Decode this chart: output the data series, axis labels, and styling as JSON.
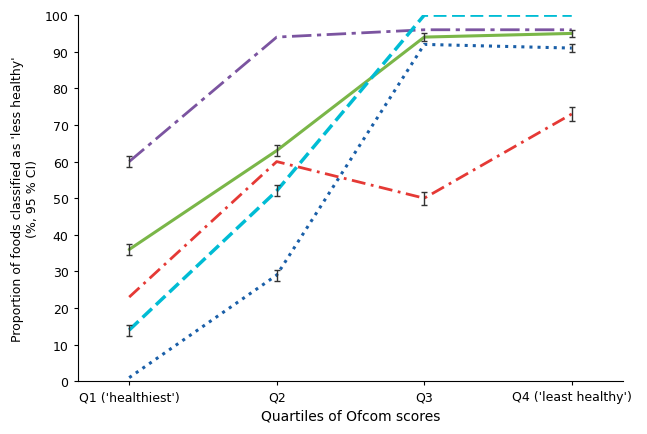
{
  "x_positions": [
    0,
    1,
    2,
    3
  ],
  "x_labels": [
    "Q1 ('healthiest')",
    "Q2",
    "Q3",
    "Q4 ('least healthy')"
  ],
  "xlabel": "Quartiles of Ofcom scores",
  "ylabel": "Proportion of foods classified as 'less healthy'\n(%, 95 % CI)",
  "ylim": [
    0,
    100
  ],
  "yticks": [
    0,
    10,
    20,
    30,
    40,
    50,
    60,
    70,
    80,
    90,
    100
  ],
  "series": [
    {
      "name": "green_solid",
      "color": "#7ab648",
      "linestyle": "-",
      "linewidth": 2.2,
      "y": [
        36,
        63,
        94,
        95
      ],
      "yerr": [
        1.5,
        1.5,
        1.0,
        1.0
      ],
      "show_err": [
        true,
        true,
        true,
        true
      ]
    },
    {
      "name": "purple_dashdot",
      "color": "#7b54a0",
      "linestyle": "dashdot",
      "linewidth": 2.0,
      "y": [
        60,
        94,
        96,
        96
      ],
      "yerr": [
        1.5,
        1.0,
        0.8,
        0.8
      ],
      "show_err": [
        true,
        false,
        false,
        false
      ]
    },
    {
      "name": "cyan_dashed",
      "color": "#00bcd4",
      "linestyle": "dashed",
      "linewidth": 2.5,
      "y": [
        14,
        52,
        100,
        100
      ],
      "yerr": [
        1.5,
        1.5,
        0.3,
        0.3
      ],
      "show_err": [
        true,
        true,
        false,
        false
      ]
    },
    {
      "name": "blue_dotted",
      "color": "#1a5fa8",
      "linestyle": "dotted",
      "linewidth": 2.2,
      "y": [
        1,
        29,
        92,
        91
      ],
      "yerr": [
        0.5,
        1.5,
        1.0,
        1.2
      ],
      "show_err": [
        false,
        true,
        false,
        true
      ]
    },
    {
      "name": "red_dashdot",
      "color": "#e53935",
      "linestyle": "dashdot2",
      "linewidth": 2.0,
      "y": [
        23,
        60,
        50,
        73
      ],
      "yerr": [
        1.5,
        1.5,
        1.8,
        2.0
      ],
      "show_err": [
        false,
        false,
        true,
        true
      ]
    }
  ],
  "background_color": "#ffffff"
}
